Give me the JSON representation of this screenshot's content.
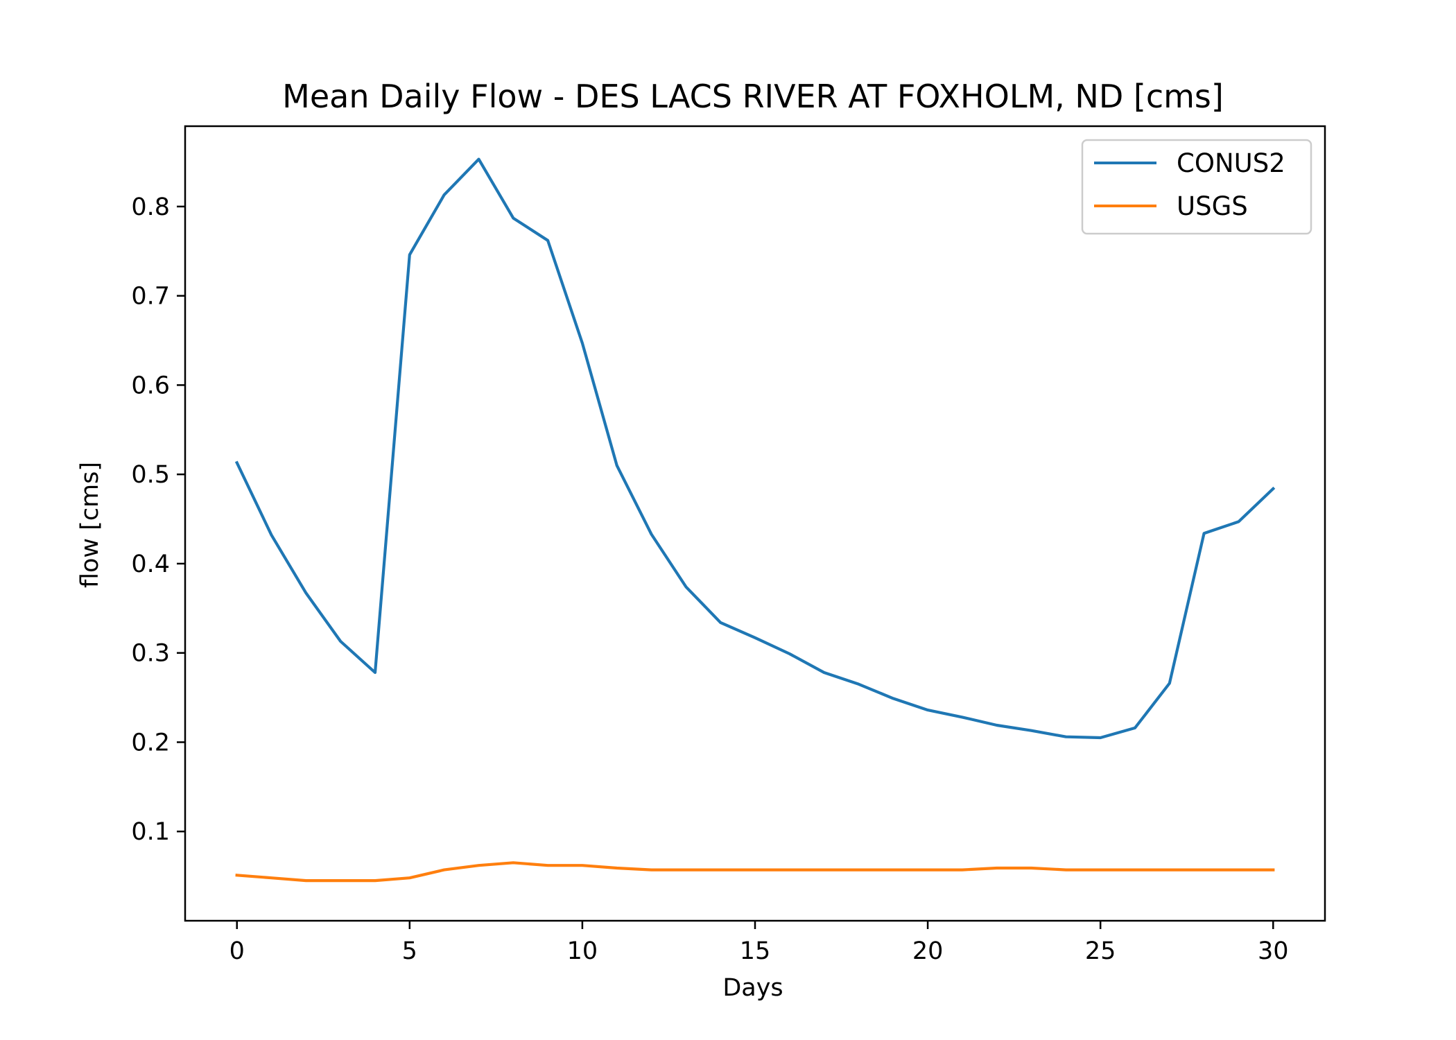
{
  "chart_data": {
    "type": "line",
    "title": "Mean Daily Flow - DES LACS RIVER AT FOXHOLM, ND [cms]",
    "xlabel": "Days",
    "ylabel": "flow [cms]",
    "xlim": [
      -1.5,
      31.5
    ],
    "ylim": [
      0.0,
      0.89
    ],
    "xticks": [
      0,
      5,
      10,
      15,
      20,
      25,
      30
    ],
    "yticks": [
      0.1,
      0.2,
      0.3,
      0.4,
      0.5,
      0.6,
      0.7,
      0.8
    ],
    "xtick_labels": [
      "0",
      "5",
      "10",
      "15",
      "20",
      "25",
      "30"
    ],
    "ytick_labels": [
      "0.1",
      "0.2",
      "0.3",
      "0.4",
      "0.5",
      "0.6",
      "0.7",
      "0.8"
    ],
    "grid": false,
    "legend_position": "top-right",
    "x": [
      0,
      1,
      2,
      3,
      4,
      5,
      6,
      7,
      8,
      9,
      10,
      11,
      12,
      13,
      14,
      15,
      16,
      17,
      18,
      19,
      20,
      21,
      22,
      23,
      24,
      25,
      26,
      27,
      28,
      29,
      30
    ],
    "series": [
      {
        "name": "CONUS2",
        "color": "#1f77b4",
        "values": [
          0.513,
          0.432,
          0.367,
          0.313,
          0.278,
          0.746,
          0.813,
          0.853,
          0.787,
          0.762,
          0.647,
          0.51,
          0.433,
          0.374,
          0.334,
          0.317,
          0.299,
          0.278,
          0.265,
          0.249,
          0.236,
          0.228,
          0.219,
          0.213,
          0.206,
          0.205,
          0.216,
          0.266,
          0.434,
          0.447,
          0.484
        ]
      },
      {
        "name": "USGS",
        "color": "#ff7f0e",
        "values": [
          0.051,
          0.048,
          0.045,
          0.045,
          0.045,
          0.048,
          0.057,
          0.062,
          0.065,
          0.062,
          0.062,
          0.059,
          0.057,
          0.057,
          0.057,
          0.057,
          0.057,
          0.057,
          0.057,
          0.057,
          0.057,
          0.057,
          0.059,
          0.059,
          0.057,
          0.057,
          0.057,
          0.057,
          0.057,
          0.057,
          0.057
        ]
      }
    ]
  }
}
